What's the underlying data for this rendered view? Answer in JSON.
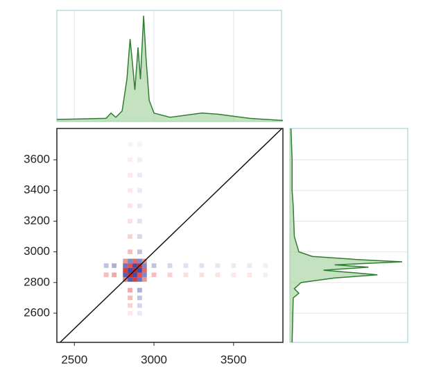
{
  "chart_data": [
    {
      "type": "line",
      "orientation": "horizontal",
      "color": "#2e7d32",
      "fill": "#9ccf95",
      "x": [
        2390,
        2700,
        2730,
        2760,
        2800,
        2830,
        2850,
        2865,
        2880,
        2900,
        2915,
        2935,
        2950,
        2970,
        3000,
        3100,
        3300,
        3400,
        3600,
        3810
      ],
      "values": [
        2,
        3,
        8,
        4,
        10,
        40,
        78,
        55,
        30,
        70,
        40,
        100,
        60,
        20,
        8,
        4,
        8,
        7,
        3,
        1
      ],
      "ylim": [
        0,
        105
      ]
    },
    {
      "type": "heatmap",
      "pos_color": "#d62728",
      "neg_color": "#2b3a9c",
      "diagonal_color": "#111111",
      "xlim": [
        2390,
        3810
      ],
      "ylim": [
        2410,
        3804
      ],
      "xticks": [
        2500,
        3000,
        3500
      ],
      "yticks": [
        2600,
        2800,
        3000,
        3200,
        3400,
        3600
      ],
      "x": [
        2820,
        2850,
        2880,
        2910,
        2940,
        2820,
        2850,
        2880,
        2910,
        2940,
        2820,
        2850,
        2880,
        2910,
        2940,
        2820,
        2850,
        2880,
        2910,
        2940,
        2820,
        2850,
        2880,
        2910,
        2940,
        2700,
        2750,
        3000,
        3100,
        3200,
        3300,
        3400,
        3500,
        3600,
        3700,
        2700,
        2750,
        3000,
        3100,
        3200,
        3300,
        3400,
        3500,
        3600,
        3700,
        2850,
        2850,
        2850,
        2850,
        2850,
        2850,
        2850,
        2850,
        2850,
        2850,
        2850,
        2850,
        2910,
        2910,
        2910,
        2910,
        2910,
        2910,
        2910,
        2910,
        2910,
        2910,
        2910,
        2910
      ],
      "y": [
        2820,
        2820,
        2820,
        2820,
        2820,
        2850,
        2850,
        2850,
        2850,
        2850,
        2880,
        2880,
        2880,
        2880,
        2880,
        2910,
        2910,
        2910,
        2910,
        2910,
        2940,
        2940,
        2940,
        2940,
        2940,
        2850,
        2850,
        2850,
        2850,
        2850,
        2850,
        2850,
        2850,
        2850,
        2850,
        2910,
        2910,
        2910,
        2910,
        2910,
        2910,
        2910,
        2910,
        2910,
        2910,
        2600,
        2650,
        2700,
        2750,
        3000,
        3100,
        3200,
        3300,
        3400,
        3500,
        3600,
        3700,
        2600,
        2650,
        2700,
        2750,
        3000,
        3100,
        3200,
        3300,
        3400,
        3500,
        3600,
        3700
      ],
      "values": [
        0.6,
        -0.8,
        0.9,
        -0.7,
        0.5,
        -0.8,
        1,
        -0.9,
        0.8,
        -0.6,
        0.9,
        -0.9,
        1,
        -0.9,
        0.7,
        -0.7,
        0.8,
        -0.9,
        1,
        -0.6,
        0.5,
        -0.6,
        0.7,
        -0.6,
        0.5,
        0.3,
        0.4,
        0.3,
        0.2,
        0.15,
        0.15,
        0.12,
        0.1,
        0.1,
        0.08,
        -0.3,
        -0.4,
        -0.3,
        -0.2,
        -0.15,
        -0.15,
        -0.12,
        -0.1,
        -0.1,
        -0.08,
        0.1,
        0.2,
        0.3,
        0.4,
        0.3,
        0.2,
        0.15,
        0.12,
        0.1,
        0.1,
        0.08,
        0.06,
        -0.1,
        -0.2,
        -0.3,
        -0.4,
        -0.3,
        -0.2,
        -0.15,
        -0.12,
        -0.1,
        -0.1,
        -0.08,
        -0.06
      ]
    },
    {
      "type": "line",
      "orientation": "vertical",
      "color": "#2e7d32",
      "fill": "#9ccf95",
      "x": [
        2410,
        2700,
        2730,
        2760,
        2800,
        2830,
        2850,
        2865,
        2880,
        2900,
        2915,
        2935,
        2950,
        2970,
        3000,
        3100,
        3300,
        3400,
        3600,
        3804
      ],
      "values": [
        2,
        3,
        8,
        4,
        10,
        40,
        78,
        55,
        30,
        70,
        40,
        100,
        60,
        20,
        8,
        4,
        3,
        2,
        2,
        1
      ],
      "ylim": [
        0,
        105
      ]
    }
  ]
}
